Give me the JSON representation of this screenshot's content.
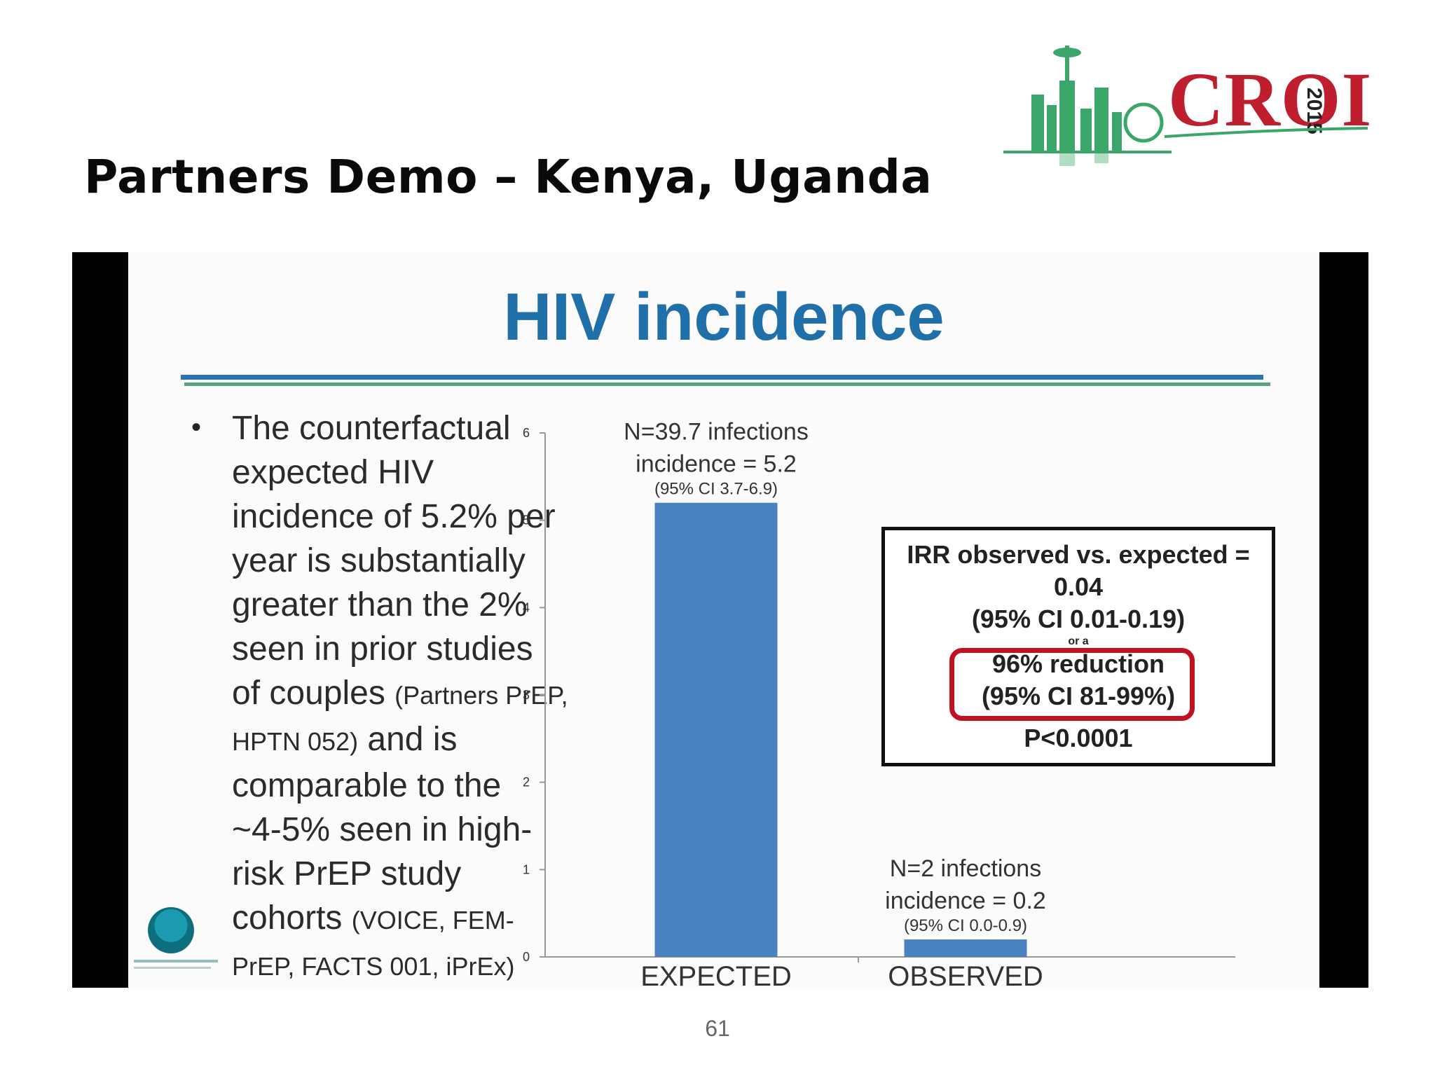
{
  "page_title": "Partners Demo – Kenya, Uganda",
  "logo": {
    "text": "CROI",
    "year": "2015"
  },
  "slide": {
    "title": "HIV incidence",
    "bullet_main": "The counterfactual\nexpected HIV\nincidence of 5.2% per\nyear is substantially\ngreater than the 2%\nseen in prior studies\nof couples ",
    "bullet_ref1": "(Partners PrEP,\nHPTN 052)",
    "bullet_mid": " and is\ncomparable to the\n~4-5% seen in high-\nrisk PrEP study\ncohorts ",
    "bullet_ref2": "(VOICE, FEM-\nPrEP, FACTS 001, iPrEx)",
    "callout": {
      "line1": "IRR observed vs. expected =",
      "line2": "0.04",
      "line3": "(95% CI 0.01-0.19)",
      "or": "or a",
      "line4": "96% reduction",
      "line5": "(95% CI 81-99%)",
      "line6": "P<0.0001"
    }
  },
  "chart_data": {
    "type": "bar",
    "categories": [
      "EXPECTED",
      "OBSERVED"
    ],
    "values": [
      5.2,
      0.2
    ],
    "ylim": [
      0,
      6
    ],
    "yticks": [
      0,
      1,
      2,
      3,
      4,
      5,
      6
    ],
    "bar_color": "#4a81c0",
    "annotations": [
      {
        "line1": "N=39.7 infections",
        "line2": "incidence = 5.2",
        "line3": "(95% CI 3.7-6.9)"
      },
      {
        "line1": "N=2 infections",
        "line2": "incidence = 0.2",
        "line3": "(95% CI 0.0-0.9)"
      }
    ]
  },
  "page_number": "61"
}
